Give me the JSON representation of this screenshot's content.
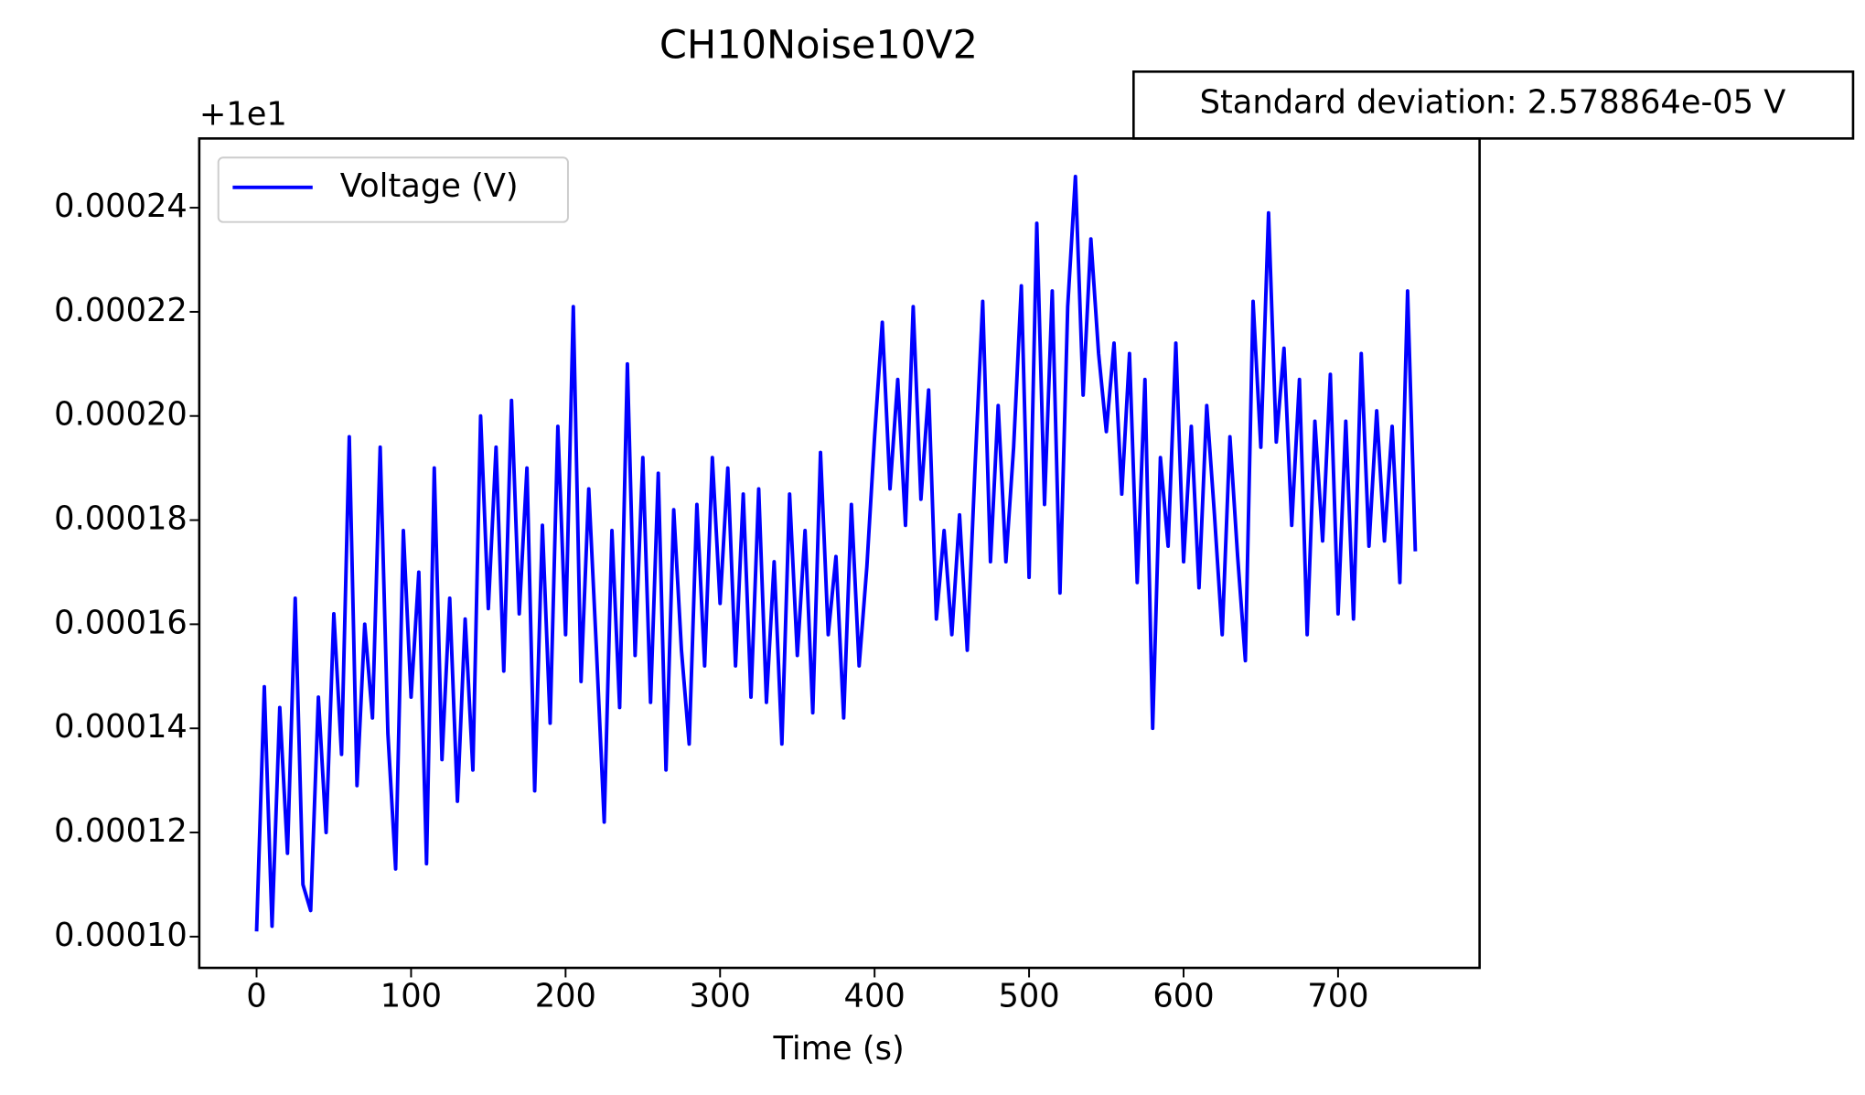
{
  "chart_data": {
    "type": "line",
    "title": "CH10Noise10V2",
    "x_label": "Time (s)",
    "y_offset_label": "+1e1",
    "annotation": "Standard deviation: 2.578864e-05 V",
    "legend": "upper left",
    "x": [
      0,
      5,
      10,
      15,
      20,
      25,
      30,
      35,
      40,
      45,
      50,
      55,
      60,
      65,
      70,
      75,
      80,
      85,
      90,
      95,
      100,
      105,
      110,
      115,
      120,
      125,
      130,
      135,
      140,
      145,
      150,
      155,
      160,
      165,
      170,
      175,
      180,
      185,
      190,
      195,
      200,
      205,
      210,
      215,
      220,
      225,
      230,
      235,
      240,
      245,
      250,
      255,
      260,
      265,
      270,
      275,
      280,
      285,
      290,
      295,
      300,
      305,
      310,
      315,
      320,
      325,
      330,
      335,
      340,
      345,
      350,
      355,
      360,
      365,
      370,
      375,
      380,
      385,
      390,
      395,
      400,
      405,
      410,
      415,
      420,
      425,
      430,
      435,
      440,
      445,
      450,
      455,
      460,
      465,
      470,
      475,
      480,
      485,
      490,
      495,
      500,
      505,
      510,
      515,
      520,
      525,
      530,
      535,
      540,
      545,
      550,
      555,
      560,
      565,
      570,
      575,
      580,
      585,
      590,
      595,
      600,
      605,
      610,
      615,
      620,
      625,
      630,
      635,
      640,
      645,
      650,
      655,
      660,
      665,
      670,
      675,
      680,
      685,
      690,
      695,
      700,
      705,
      710,
      715,
      720,
      725,
      730,
      735,
      740,
      745,
      750
    ],
    "series": [
      {
        "name": "Voltage (V)",
        "color": "#0000ff",
        "values": [
          0.000101,
          0.000148,
          0.000102,
          0.000144,
          0.000116,
          0.000165,
          0.00011,
          0.000105,
          0.000146,
          0.00012,
          0.000162,
          0.000135,
          0.000196,
          0.000129,
          0.00016,
          0.000142,
          0.000194,
          0.000139,
          0.000113,
          0.000178,
          0.000146,
          0.00017,
          0.000114,
          0.00019,
          0.000134,
          0.000165,
          0.000126,
          0.000161,
          0.000132,
          0.0002,
          0.000163,
          0.000194,
          0.000151,
          0.000203,
          0.000162,
          0.00019,
          0.000128,
          0.000179,
          0.000141,
          0.000198,
          0.000158,
          0.000221,
          0.000149,
          0.000186,
          0.000155,
          0.000122,
          0.000178,
          0.000144,
          0.00021,
          0.000154,
          0.000192,
          0.000145,
          0.000189,
          0.000132,
          0.000182,
          0.000155,
          0.000137,
          0.000183,
          0.000152,
          0.000192,
          0.000164,
          0.00019,
          0.000152,
          0.000185,
          0.000146,
          0.000186,
          0.000145,
          0.000172,
          0.000137,
          0.000185,
          0.000154,
          0.000178,
          0.000143,
          0.000193,
          0.000158,
          0.000173,
          0.000142,
          0.000183,
          0.000152,
          0.000171,
          0.000196,
          0.000218,
          0.000186,
          0.000207,
          0.000179,
          0.000221,
          0.000184,
          0.000205,
          0.000161,
          0.000178,
          0.000158,
          0.000181,
          0.000155,
          0.00019,
          0.000222,
          0.000172,
          0.000202,
          0.000172,
          0.000194,
          0.000225,
          0.000169,
          0.000237,
          0.000183,
          0.000224,
          0.000166,
          0.000221,
          0.000246,
          0.000204,
          0.000234,
          0.000212,
          0.000197,
          0.000214,
          0.000185,
          0.000212,
          0.000168,
          0.000207,
          0.00014,
          0.000192,
          0.000175,
          0.000214,
          0.000172,
          0.000198,
          0.000167,
          0.000202,
          0.000181,
          0.000158,
          0.000196,
          0.000173,
          0.000153,
          0.000222,
          0.000194,
          0.000239,
          0.000195,
          0.000213,
          0.000179,
          0.000207,
          0.000158,
          0.000199,
          0.000176,
          0.000208,
          0.000162,
          0.000199,
          0.000161,
          0.000212,
          0.000175,
          0.000201,
          0.000176,
          0.000198,
          0.000168,
          0.000224,
          0.000174
        ]
      }
    ],
    "xlim": [
      -37.1,
      791.6
    ],
    "xticks": [
      0,
      100,
      200,
      300,
      400,
      500,
      600,
      700
    ],
    "ylim": [
      9.4e-05,
      0.0002533
    ],
    "yticks": [
      {
        "value": 0.0001,
        "label": "0.00010"
      },
      0.00012,
      0.00014,
      0.00016,
      0.00018,
      {
        "value": 0.0002,
        "label": "0.00020"
      },
      0.00022,
      0.00024
    ]
  }
}
